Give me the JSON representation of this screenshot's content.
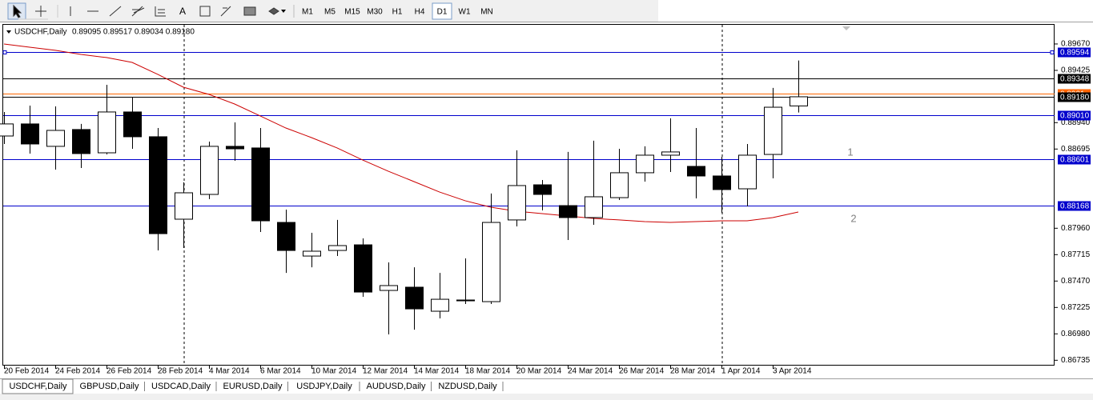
{
  "toolbar": {
    "text_tool": "A",
    "timeframes": [
      "M1",
      "M5",
      "M15",
      "M30",
      "H1",
      "H4",
      "D1",
      "W1",
      "MN"
    ],
    "active": "D1"
  },
  "chart_data": {
    "type": "candlestick",
    "title": "USDCHF,Daily",
    "info": "0.89095 0.89517 0.89034 0.89180",
    "categories": [
      "20 Feb 2014",
      null,
      "24 Feb 2014",
      null,
      "26 Feb 2014",
      null,
      "28 Feb 2014",
      null,
      "4 Mar 2014",
      null,
      "6 Mar 2014",
      null,
      "10 Mar 2014",
      null,
      "12 Mar 2014",
      null,
      "14 Mar 2014",
      null,
      "18 Mar 2014",
      null,
      "20 Mar 2014",
      null,
      "24 Mar 2014",
      null,
      "26 Mar 2014",
      null,
      "28 Mar 2014",
      null,
      "1 Apr 2014",
      null,
      "3 Apr 2014",
      null
    ],
    "open": [
      0.88816,
      0.88928,
      0.8872,
      0.88876,
      0.8866,
      0.89039,
      0.88809,
      0.88044,
      0.88274,
      0.8872,
      0.88705,
      0.88014,
      0.87702,
      0.87754,
      0.87806,
      0.87383,
      0.87413,
      0.8719,
      0.87287,
      0.87279,
      0.88037,
      0.88363,
      0.8817,
      0.88059,
      0.88244,
      0.88475,
      0.88638,
      0.88534,
      0.88445,
      0.88326,
      0.88645,
      0.89095
    ],
    "high": [
      0.89039,
      0.89098,
      0.89091,
      0.88928,
      0.89291,
      0.8918,
      0.8889,
      0.88386,
      0.88764,
      0.88942,
      0.8889,
      0.88133,
      0.87918,
      0.88037,
      0.87866,
      0.87643,
      0.87598,
      0.87546,
      0.8768,
      0.88282,
      0.88683,
      0.88408,
      0.88668,
      0.88772,
      0.88697,
      0.8872,
      0.8898,
      0.8889,
      0.88623,
      0.88742,
      0.89262,
      0.89517
    ],
    "low": [
      0.88742,
      0.88653,
      0.88504,
      0.88519,
      0.88645,
      0.88697,
      0.87754,
      0.87777,
      0.8823,
      0.88586,
      0.87925,
      0.87546,
      0.87598,
      0.87702,
      0.87324,
      0.86975,
      0.87019,
      0.87123,
      0.87257,
      0.87257,
      0.87977,
      0.88126,
      0.87851,
      0.87992,
      0.88222,
      0.88393,
      0.88482,
      0.88237,
      0.88103,
      0.88163,
      0.88423,
      0.89034
    ],
    "close": [
      0.88928,
      0.88742,
      0.88868,
      0.88653,
      0.89039,
      0.88809,
      0.8791,
      0.88289,
      0.8872,
      0.88697,
      0.88029,
      0.87754,
      0.87747,
      0.87799,
      0.87368,
      0.87428,
      0.87212,
      0.87301,
      0.87294,
      0.88014,
      0.88356,
      0.88274,
      0.88059,
      0.88252,
      0.88475,
      0.88638,
      0.88668,
      0.88445,
      0.88319,
      0.88638,
      0.89083,
      0.8918
    ],
    "ma": {
      "color": "#cc0000",
      "values": [
        0.8967,
        0.8964,
        0.89611,
        0.89573,
        0.89544,
        0.89499,
        0.89388,
        0.89269,
        0.89202,
        0.89113,
        0.89002,
        0.8889,
        0.88801,
        0.88705,
        0.88593,
        0.88489,
        0.88393,
        0.88296,
        0.88215,
        0.88155,
        0.88118,
        0.88096,
        0.88074,
        0.88051,
        0.88037,
        0.88022,
        0.88014,
        0.88022,
        0.88029,
        0.88029,
        0.88059,
        0.88111
      ]
    },
    "ylim": [
      0.86678,
      0.89833
    ],
    "yticks": [
      {
        "value": 0.8967,
        "label": "0.89670"
      },
      {
        "value": 0.89425,
        "label": "0.89425"
      },
      {
        "value": 0.8894,
        "label": "0.88940"
      },
      {
        "value": 0.88695,
        "label": "0.88695"
      },
      {
        "value": 0.8796,
        "label": "0.87960"
      },
      {
        "value": 0.87715,
        "label": "0.87715"
      },
      {
        "value": 0.8747,
        "label": "0.87470"
      },
      {
        "value": 0.87225,
        "label": "0.87225"
      },
      {
        "value": 0.8698,
        "label": "0.86980"
      },
      {
        "value": 0.86735,
        "label": "0.86735"
      }
    ],
    "lines": [
      {
        "value": 0.89594,
        "color": "#0000cc"
      },
      {
        "value": 0.89348,
        "color": "#000000"
      },
      {
        "value": 0.8921,
        "color": "#ff6600"
      },
      {
        "value": {
          "value": 0.8918,
          "label": "0.89180"
        },
        "color": "#000000"
      },
      {
        "value": {
          "value": 0.8901,
          "label": "0.89010"
        },
        "color": "#0000cc"
      },
      {
        "value": 0.88601,
        "color": "#0000cc"
      },
      {
        "value": 0.88168,
        "color": "#0000cc"
      }
    ],
    "annotations": [
      "1",
      "2"
    ]
  },
  "tabs": [
    "USDCHF,Daily",
    "GBPUSD,Daily",
    "USDCAD,Daily",
    "EURUSD,Daily",
    "USDJPY,Daily",
    "AUDUSD,Daily",
    "NZDUSD,Daily"
  ],
  "active_tab": 0
}
